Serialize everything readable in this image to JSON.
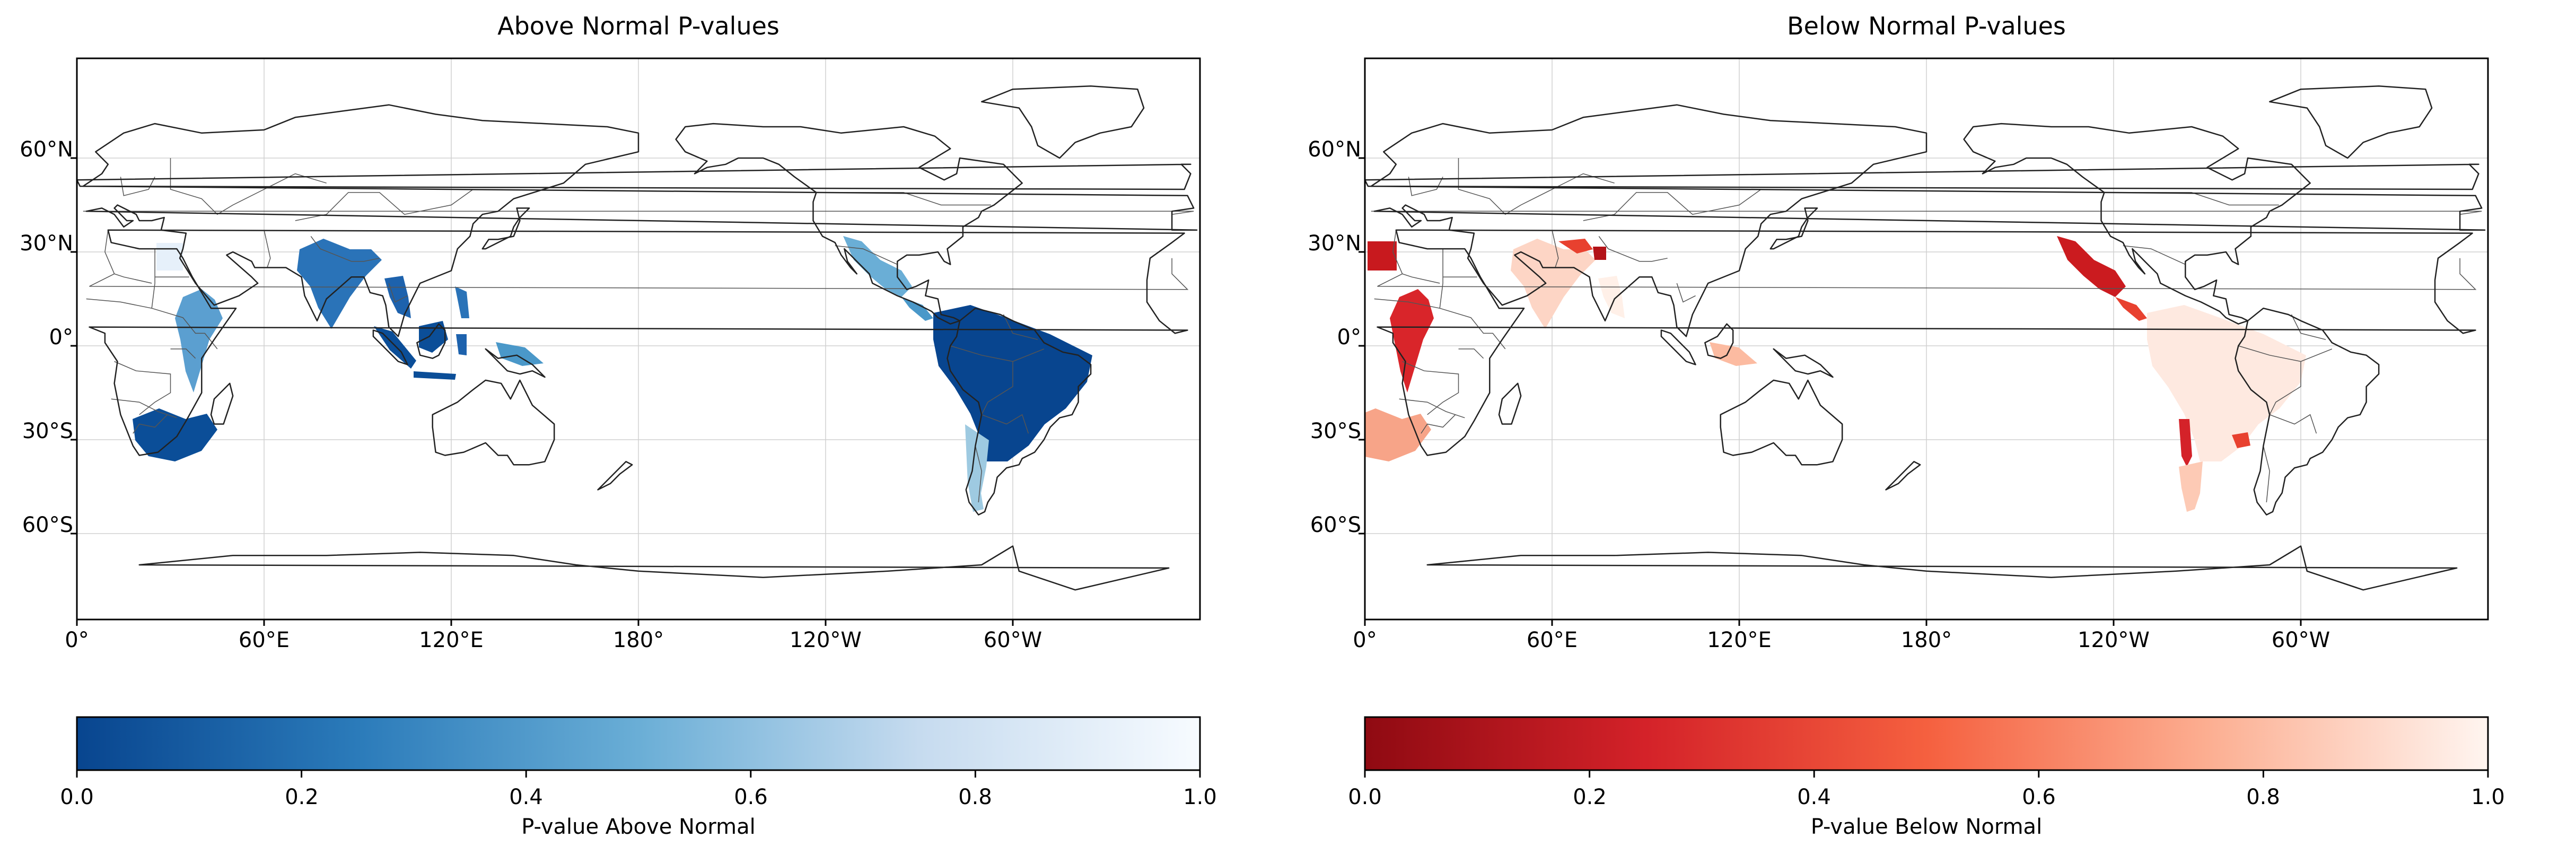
{
  "palette": {
    "blue_dark": "#08458f",
    "blue_mid": "#4a98c9",
    "blue_light": "#c6dbef",
    "blue_white": "#f7fbff",
    "red_dark": "#8f0a12",
    "red_mid": "#e8412f",
    "red_light": "#fcae91",
    "red_white": "#fff5f0",
    "coast": "#222222",
    "border": "#555555",
    "grid": "#d0d0d0"
  },
  "axes": {
    "lat_ticks": [
      "60°N",
      "30°N",
      "0°",
      "30°S",
      "60°S"
    ],
    "lon_ticks": [
      "0°",
      "60°E",
      "120°E",
      "180°",
      "120°W",
      "60°W"
    ]
  },
  "panels": [
    {
      "title": "Above Normal P-values",
      "colorbar": {
        "label": "P-value Above Normal",
        "ticks": [
          "0.0",
          "0.2",
          "0.4",
          "0.6",
          "0.8",
          "1.0"
        ],
        "range": [
          0.0,
          1.0
        ],
        "colormap": "Blues_r"
      }
    },
    {
      "title": "Below Normal P-values",
      "colorbar": {
        "label": "P-value Below Normal",
        "ticks": [
          "0.0",
          "0.2",
          "0.4",
          "0.6",
          "0.8",
          "1.0"
        ],
        "range": [
          0.0,
          1.0
        ],
        "colormap": "Reds_r"
      }
    }
  ]
}
